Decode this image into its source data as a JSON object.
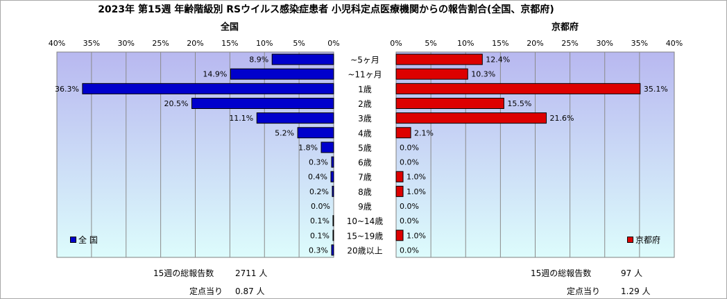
{
  "title": "2023年 第15週 年齢階級別 RSウイルス感染症患者 小児科定点医療機関からの報告割合(全国、京都府)",
  "colors": {
    "national_bar": "#0000cc",
    "kyoto_bar": "#dd0000",
    "plot_gradient_top": "#b8b8f0",
    "plot_gradient_bottom": "#ddfcfc"
  },
  "chart_data": [
    {
      "type": "bar",
      "orientation": "horizontal",
      "direction": "right-to-left",
      "title": "全国",
      "xlim": [
        0,
        40
      ],
      "ticks": [
        "40%",
        "35%",
        "30%",
        "25%",
        "20%",
        "15%",
        "10%",
        "5%",
        "0%"
      ],
      "categories": [
        "~5ヶ月",
        "~11ヶ月",
        "1歳",
        "2歳",
        "3歳",
        "4歳",
        "5歳",
        "6歳",
        "7歳",
        "8歳",
        "9歳",
        "10~14歳",
        "15~19歳",
        "20歳以上"
      ],
      "series": [
        {
          "name": "全 国",
          "values": [
            8.9,
            14.9,
            36.3,
            20.5,
            11.1,
            5.2,
            1.8,
            0.3,
            0.4,
            0.2,
            0.0,
            0.1,
            0.1,
            0.3
          ],
          "labels": [
            "8.9%",
            "14.9%",
            "36.3%",
            "20.5%",
            "11.1%",
            "5.2%",
            "1.8%",
            "0.3%",
            "0.4%",
            "0.2%",
            "0.0%",
            "0.1%",
            "0.1%",
            "0.3%"
          ]
        }
      ],
      "legend": "bottom-left",
      "grid": true
    },
    {
      "type": "bar",
      "orientation": "horizontal",
      "direction": "left-to-right",
      "title": "京都府",
      "xlim": [
        0,
        40
      ],
      "ticks": [
        "0%",
        "5%",
        "10%",
        "15%",
        "20%",
        "25%",
        "30%",
        "35%",
        "40%"
      ],
      "categories": [
        "~5ヶ月",
        "~11ヶ月",
        "1歳",
        "2歳",
        "3歳",
        "4歳",
        "5歳",
        "6歳",
        "7歳",
        "8歳",
        "9歳",
        "10~14歳",
        "15~19歳",
        "20歳以上"
      ],
      "series": [
        {
          "name": "京都府",
          "values": [
            12.4,
            10.3,
            35.1,
            15.5,
            21.6,
            2.1,
            0.0,
            0.0,
            1.0,
            1.0,
            0.0,
            0.0,
            1.0,
            0.0
          ],
          "labels": [
            "12.4%",
            "10.3%",
            "35.1%",
            "15.5%",
            "21.6%",
            "2.1%",
            "0.0%",
            "0.0%",
            "1.0%",
            "1.0%",
            "0.0%",
            "0.0%",
            "1.0%",
            "0.0%"
          ]
        }
      ],
      "legend": "bottom-right",
      "grid": true
    }
  ],
  "category_labels": [
    "~5ヶ月",
    "~11ヶ月",
    "1歳",
    "2歳",
    "3歳",
    "4歳",
    "5歳",
    "6歳",
    "7歳",
    "8歳",
    "9歳",
    "10~14歳",
    "15~19歳",
    "20歳以上"
  ],
  "footer": {
    "national": {
      "total_label": "15週の総報告数",
      "total_value": "2711 人",
      "per_site_label": "定点当り",
      "per_site_value": "0.87 人"
    },
    "kyoto": {
      "total_label": "15週の総報告数",
      "total_value": "97 人",
      "per_site_label": "定点当り",
      "per_site_value": "1.29 人"
    }
  }
}
